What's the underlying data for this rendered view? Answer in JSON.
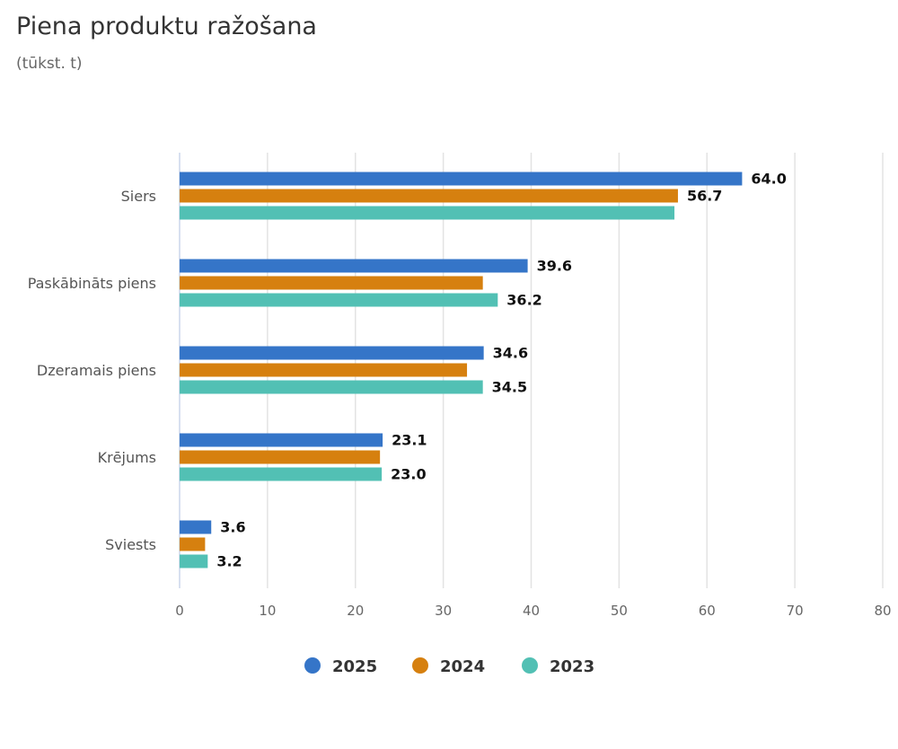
{
  "chart_data": {
    "type": "bar",
    "orientation": "horizontal",
    "title": "Piena produktu ražošana",
    "subtitle": "(tūkst. t)",
    "categories": [
      "Siers",
      "Paskābināts piens",
      "Dzeramais piens",
      "Krējums",
      "Sviests"
    ],
    "series": [
      {
        "name": "2025",
        "color": "#3575c8",
        "values": [
          64.0,
          39.6,
          34.6,
          23.1,
          3.6
        ],
        "labels_shown": [
          true,
          true,
          true,
          true,
          true
        ]
      },
      {
        "name": "2024",
        "color": "#d6800f",
        "values": [
          56.7,
          34.5,
          32.7,
          22.8,
          2.9
        ],
        "labels_shown": [
          true,
          false,
          false,
          false,
          false
        ]
      },
      {
        "name": "2023",
        "color": "#52c0b4",
        "values": [
          56.3,
          36.2,
          34.5,
          23.0,
          3.2
        ],
        "labels_shown": [
          false,
          true,
          true,
          true,
          true
        ]
      }
    ],
    "xlim": [
      0,
      80
    ],
    "xticks": [
      0,
      10,
      20,
      30,
      40,
      50,
      60,
      70,
      80
    ],
    "grid": true,
    "legend_position": "bottom-center"
  }
}
